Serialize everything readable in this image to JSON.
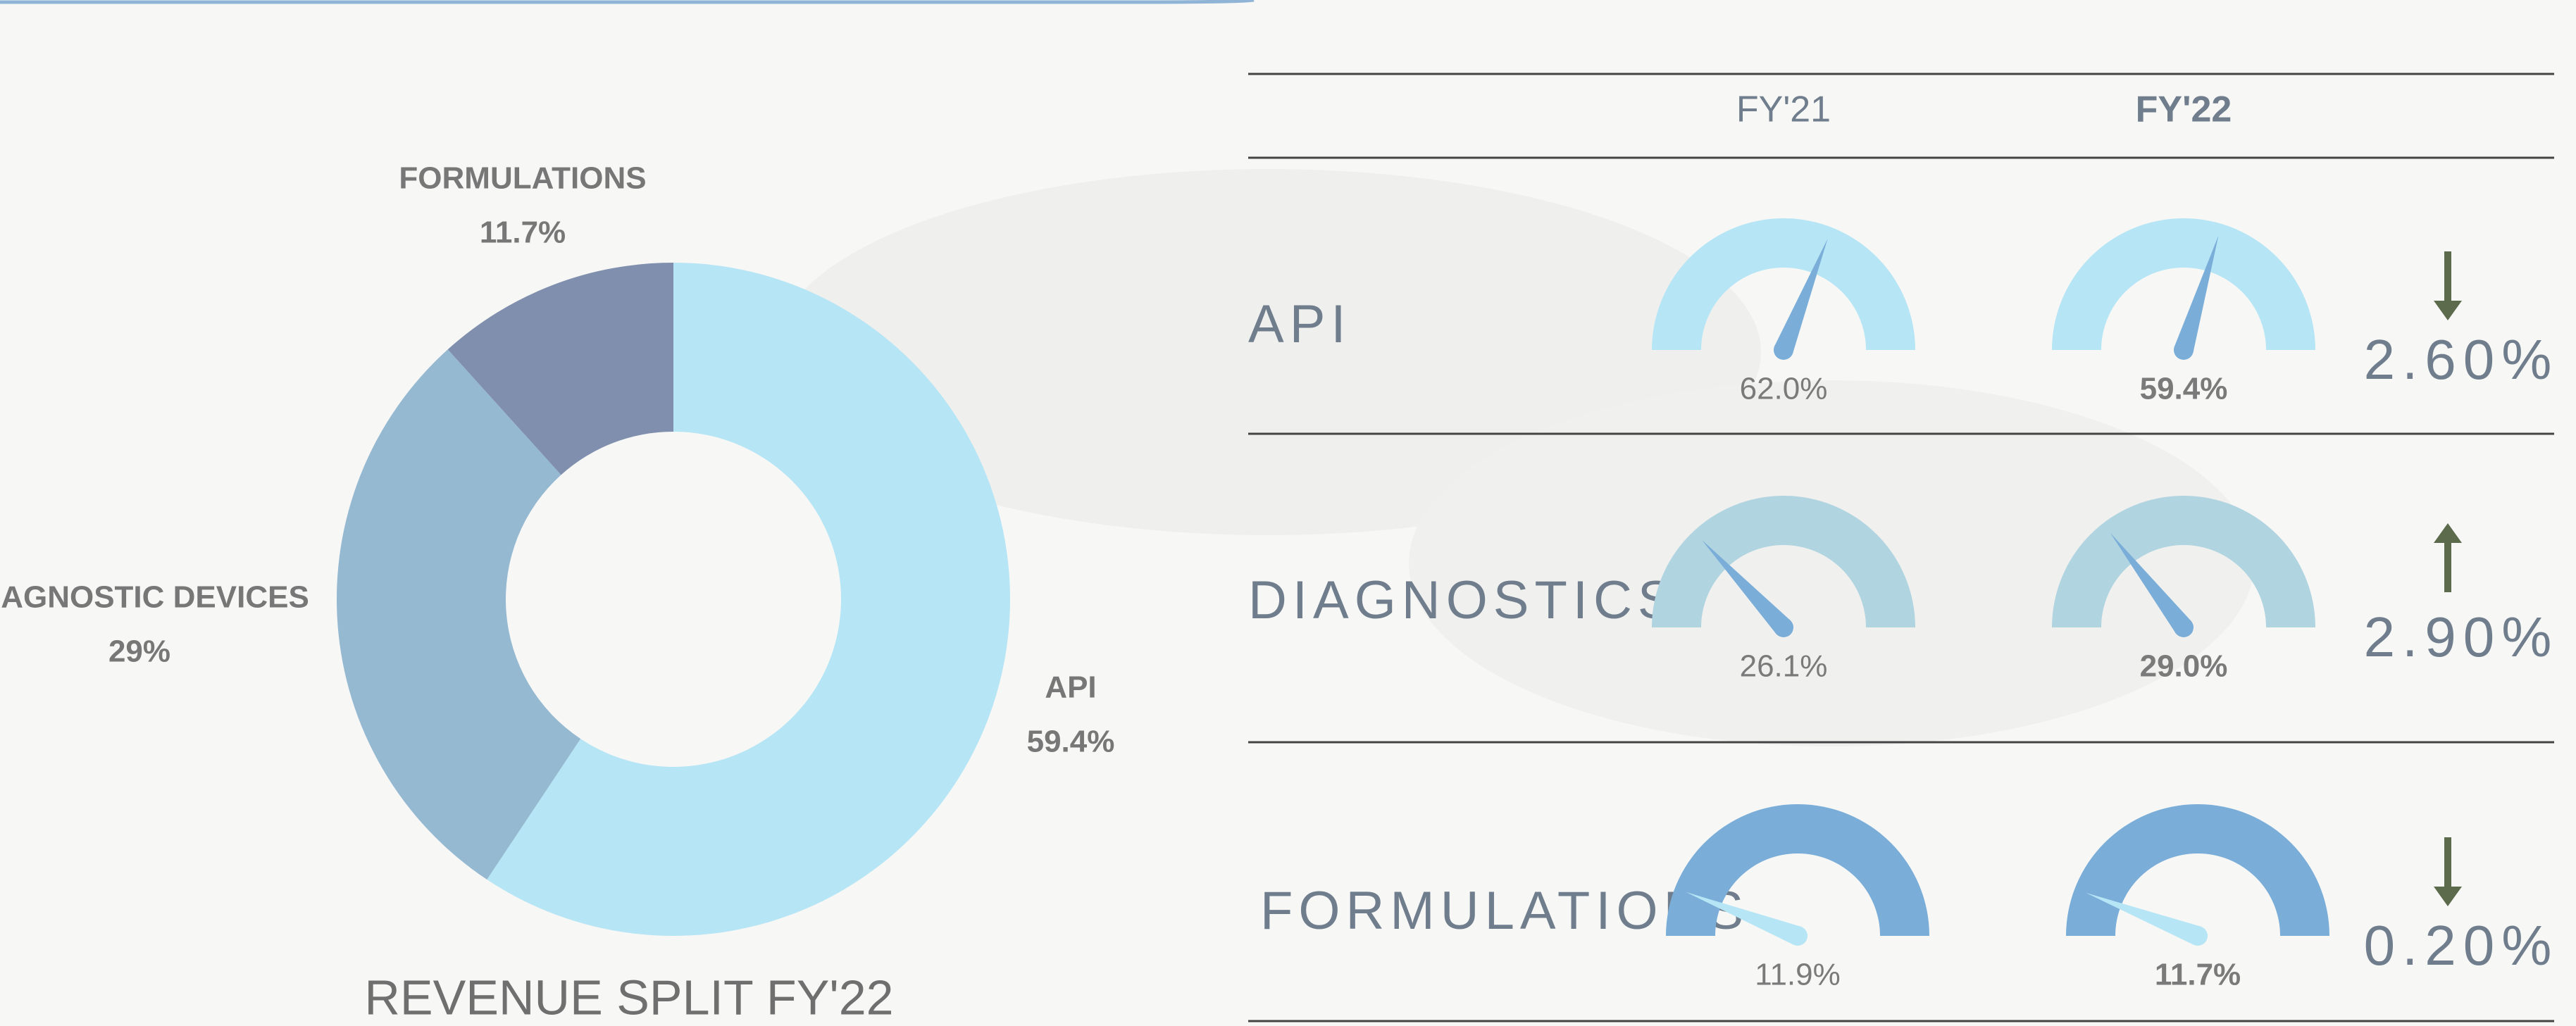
{
  "chart_data": {
    "type": "donut",
    "title": "REVENUE SPLIT FY'22",
    "categories": [
      "API",
      "DIAGNOSTIC DEVICES",
      "FORMULATIONS"
    ],
    "values": [
      59.4,
      29,
      11.7
    ],
    "value_labels": [
      "59.4%",
      "29%",
      "11.7%"
    ],
    "colors": [
      "#b6e5f5",
      "#96b9d2",
      "#7f8fad"
    ]
  },
  "table": {
    "columns": [
      "FY'21",
      "FY'22"
    ],
    "rows": [
      {
        "label": "API",
        "fy21": {
          "value": 62.0,
          "label": "62.0%"
        },
        "fy22": {
          "value": 59.4,
          "label": "59.4%"
        },
        "change": "2.60%",
        "direction": "down",
        "gauge_color": "#b6e5f5",
        "needle_color": "#7aaed8"
      },
      {
        "label": "DIAGNOSTICS",
        "fy21": {
          "value": 26.1,
          "label": "26.1%"
        },
        "fy22": {
          "value": 29.0,
          "label": "29.0%"
        },
        "change": "2.90%",
        "direction": "up",
        "gauge_color": "#b1d4e1",
        "needle_color": "#7aaed8"
      },
      {
        "label": "FORMULATIONS",
        "fy21": {
          "value": 11.9,
          "label": "11.9%"
        },
        "fy22": {
          "value": 11.7,
          "label": "11.7%"
        },
        "change": "0.20%",
        "direction": "down",
        "gauge_color": "#7aaed8",
        "needle_color": "#b6e5f5"
      }
    ]
  }
}
